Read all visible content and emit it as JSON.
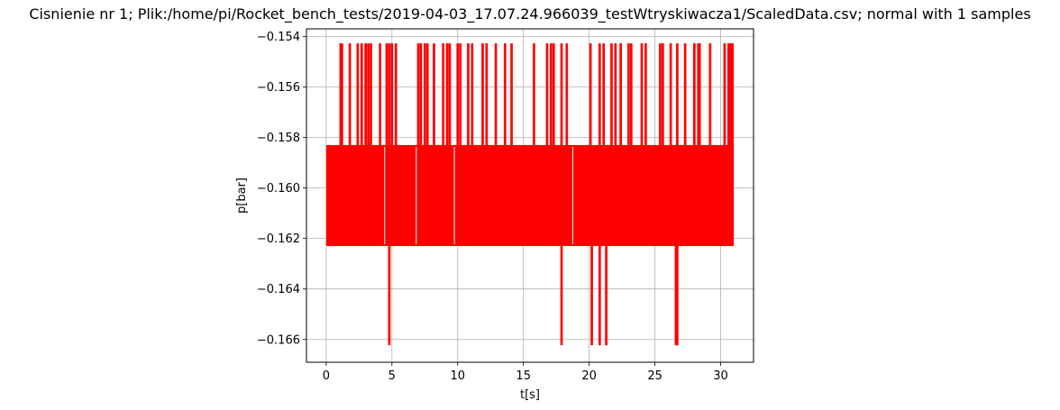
{
  "chart_data": {
    "type": "line",
    "title": "Cisnienie nr 1; Plik:/home/pi/Rocket_bench_tests/2019-04-03_17.07.24.966039_testWtryskiwacza1/ScaledData.csv; normal with 1 samples",
    "xlabel": "t[s]",
    "ylabel": "p[bar]",
    "xlim": [
      -1.5,
      32.5
    ],
    "ylim": [
      -0.1669,
      -0.1537
    ],
    "xticks": [
      0,
      5,
      10,
      15,
      20,
      25,
      30
    ],
    "xtick_labels": [
      "0",
      "5",
      "10",
      "15",
      "20",
      "25",
      "30"
    ],
    "yticks": [
      -0.154,
      -0.156,
      -0.158,
      -0.16,
      -0.162,
      -0.164,
      -0.166
    ],
    "ytick_labels": [
      "−0.154",
      "−0.156",
      "−0.158",
      "−0.160",
      "−0.162",
      "−0.164",
      "−0.166"
    ],
    "grid": true,
    "series": [
      {
        "color": "#ff0000",
        "x_range": [
          0,
          31
        ],
        "levels": {
          "base_low": -0.1623,
          "base_high": -0.1583,
          "spike_high": -0.1543,
          "spike_low": -0.1662
        },
        "high_spike_times": [
          1.1,
          1.2,
          1.8,
          2.4,
          2.7,
          3.0,
          3.2,
          3.4,
          4.1,
          4.6,
          4.8,
          5.0,
          5.3,
          7.0,
          7.2,
          7.5,
          7.7,
          8.2,
          8.9,
          9.2,
          9.4,
          10.0,
          10.2,
          10.8,
          11.1,
          11.9,
          12.2,
          12.9,
          13.6,
          14.1,
          15.8,
          16.8,
          17.1,
          17.3,
          17.9,
          18.3,
          20.1,
          20.8,
          21.1,
          21.7,
          22.0,
          22.4,
          23.0,
          23.2,
          24.0,
          24.3,
          25.4,
          25.6,
          26.2,
          26.7,
          27.3,
          28.0,
          28.3,
          28.4,
          29.2,
          30.3,
          30.6,
          30.7,
          30.8,
          30.9
        ],
        "low_spike_times": [
          4.8,
          17.9,
          20.2,
          20.8,
          21.3,
          26.6,
          26.7
        ]
      }
    ]
  }
}
